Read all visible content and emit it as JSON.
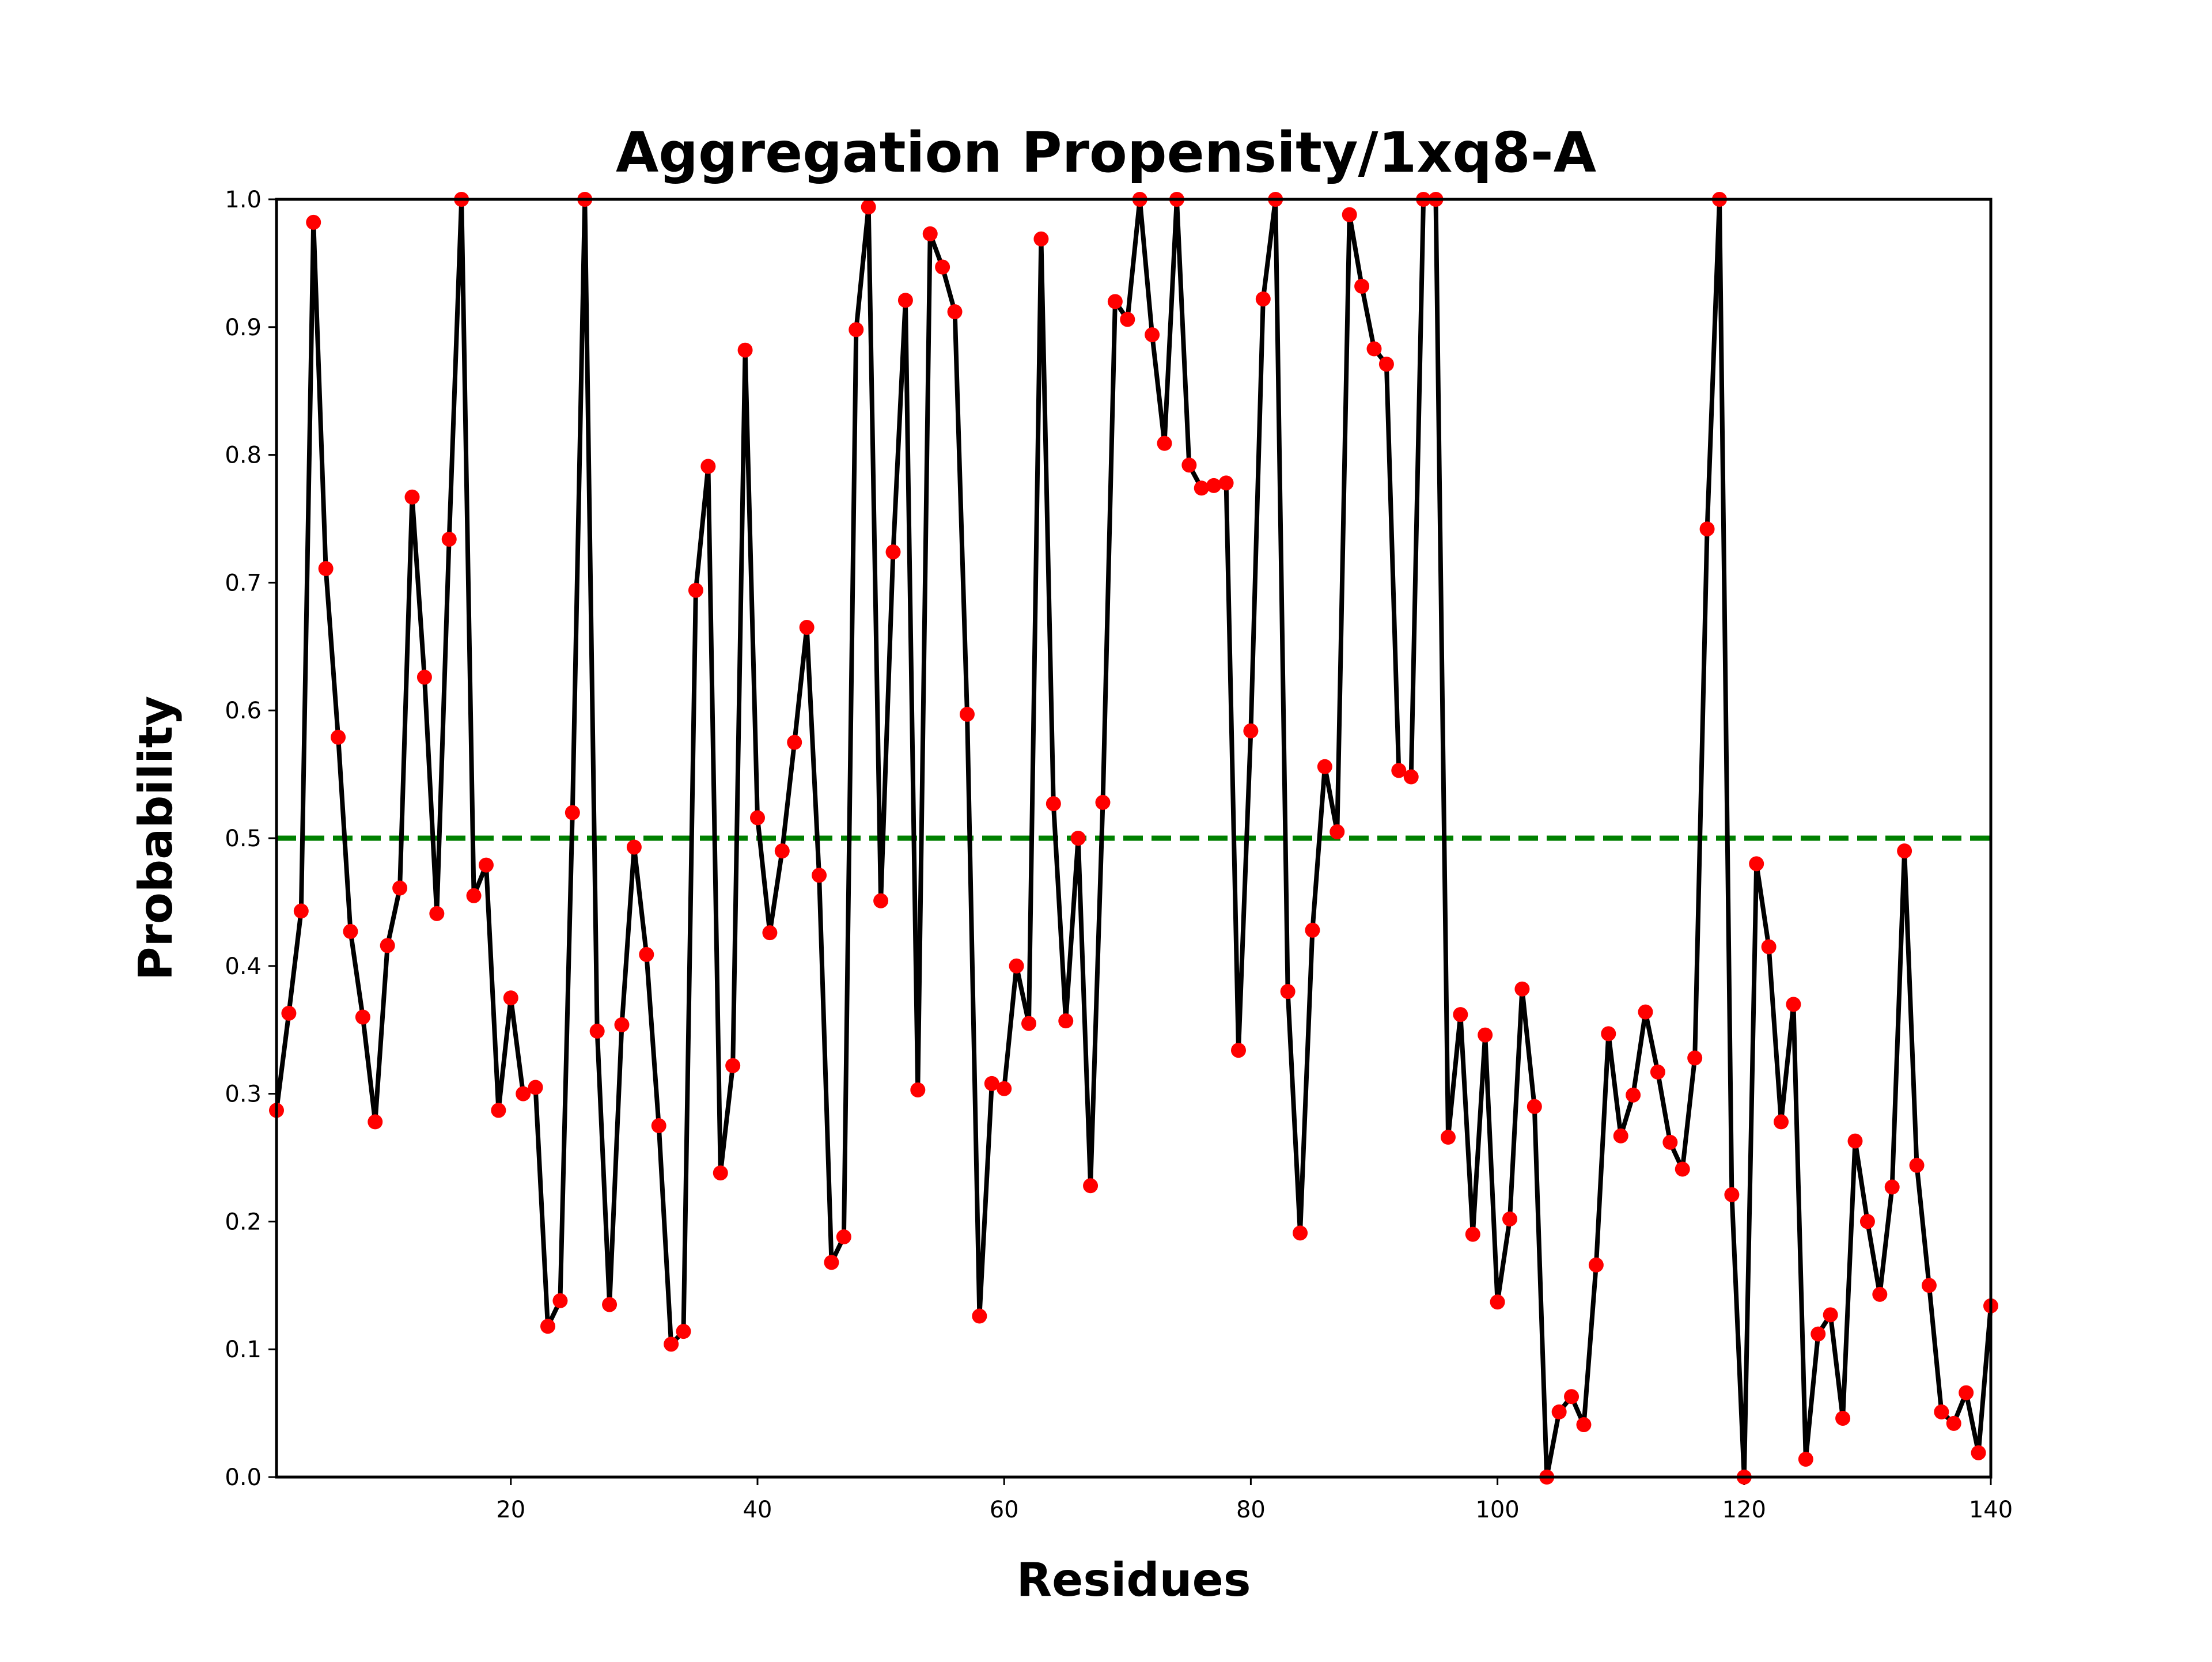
{
  "chart_data": {
    "type": "line",
    "title": "Aggregation Propensity/1xq8-A",
    "xlabel": "Residues",
    "ylabel": "Probability",
    "xlim": [
      1,
      140
    ],
    "ylim": [
      0,
      1
    ],
    "xticks": [
      20,
      40,
      60,
      80,
      100,
      120,
      140
    ],
    "yticks": [
      0.0,
      0.1,
      0.2,
      0.3,
      0.4,
      0.5,
      0.6,
      0.7,
      0.8,
      0.9,
      1.0
    ],
    "grid": false,
    "threshold": {
      "y": 0.5,
      "color": "#008000",
      "style": "dashed",
      "x_range": [
        1,
        140
      ]
    },
    "line_color": "#000000",
    "marker_color": "#ff0000",
    "x": [
      1,
      2,
      3,
      4,
      5,
      6,
      7,
      8,
      9,
      10,
      11,
      12,
      13,
      14,
      15,
      16,
      17,
      18,
      19,
      20,
      21,
      22,
      23,
      24,
      25,
      26,
      27,
      28,
      29,
      30,
      31,
      32,
      33,
      34,
      35,
      36,
      37,
      38,
      39,
      40,
      41,
      42,
      43,
      44,
      45,
      46,
      47,
      48,
      49,
      50,
      51,
      52,
      53,
      54,
      55,
      56,
      57,
      58,
      59,
      60,
      61,
      62,
      63,
      64,
      65,
      66,
      67,
      68,
      69,
      70,
      71,
      72,
      73,
      74,
      75,
      76,
      77,
      78,
      79,
      80,
      81,
      82,
      83,
      84,
      85,
      86,
      87,
      88,
      89,
      90,
      91,
      92,
      93,
      94,
      95,
      96,
      97,
      98,
      99,
      100,
      101,
      102,
      103,
      104,
      105,
      106,
      107,
      108,
      109,
      110,
      111,
      112,
      113,
      114,
      115,
      116,
      117,
      118,
      119,
      120,
      121,
      122,
      123,
      124,
      125,
      126,
      127,
      128,
      129,
      130,
      131,
      132,
      133,
      134,
      135,
      136,
      137,
      138,
      139,
      140
    ],
    "values": [
      0.287,
      0.363,
      0.443,
      0.982,
      0.711,
      0.579,
      0.427,
      0.36,
      0.278,
      0.416,
      0.461,
      0.767,
      0.626,
      0.441,
      0.734,
      1.0,
      0.455,
      0.479,
      0.287,
      0.375,
      0.3,
      0.305,
      0.118,
      0.138,
      0.52,
      1.0,
      0.349,
      0.135,
      0.354,
      0.493,
      0.409,
      0.275,
      0.104,
      0.114,
      0.694,
      0.791,
      0.238,
      0.322,
      0.882,
      0.516,
      0.426,
      0.49,
      0.575,
      0.665,
      0.471,
      0.168,
      0.188,
      0.898,
      0.994,
      0.451,
      0.724,
      0.921,
      0.303,
      0.973,
      0.947,
      0.912,
      0.597,
      0.126,
      0.308,
      0.304,
      0.4,
      0.355,
      0.969,
      0.527,
      0.357,
      0.5,
      0.228,
      0.528,
      0.92,
      0.906,
      1.0,
      0.894,
      0.809,
      1.0,
      0.792,
      0.774,
      0.776,
      0.778,
      0.334,
      0.584,
      0.922,
      1.0,
      0.38,
      0.191,
      0.428,
      0.556,
      0.505,
      0.988,
      0.932,
      0.883,
      0.871,
      0.553,
      0.548,
      1.0,
      1.0,
      0.266,
      0.362,
      0.19,
      0.346,
      0.137,
      0.202,
      0.382,
      0.29,
      0.0,
      0.051,
      0.063,
      0.041,
      0.166,
      0.347,
      0.267,
      0.299,
      0.364,
      0.317,
      0.262,
      0.241,
      0.328,
      0.742,
      1.0,
      0.221,
      0.0,
      0.48,
      0.415,
      0.278,
      0.37,
      0.014,
      0.112,
      0.127,
      0.046,
      0.263,
      0.2,
      0.143,
      0.227,
      0.49,
      0.244,
      0.15,
      0.051,
      0.042,
      0.066,
      0.019,
      0.134
    ]
  }
}
